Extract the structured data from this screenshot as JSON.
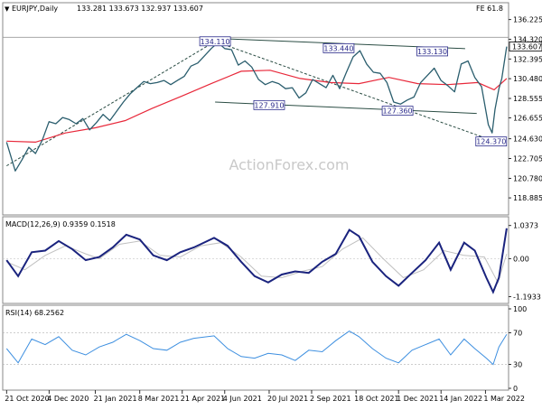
{
  "chart_data": [
    {
      "type": "candlestick",
      "symbol_title": "EURJPY,Daily",
      "ohlc_readout": "133.281 133.673 132.937 133.607",
      "fib_label": "FE 61.8",
      "last_price_label": "133.607",
      "last_price": 133.607,
      "ylim": [
        117.4,
        136.9
      ],
      "y_ticks": [
        118.885,
        120.78,
        122.705,
        124.63,
        126.655,
        128.555,
        130.48,
        132.395,
        134.32,
        136.225
      ],
      "y_tick_labels": [
        "118.885",
        "120.780",
        "122.705",
        "124.630",
        "126.655",
        "128.555",
        "130.480",
        "132.395",
        "134.320",
        "136.225"
      ],
      "fib_level": 134.5,
      "annotations": [
        {
          "text": "134.110",
          "value": 134.11,
          "date": "2021-05-25"
        },
        {
          "text": "133.440",
          "value": 133.44,
          "date": "2021-09-30"
        },
        {
          "text": "133.130",
          "value": 133.13,
          "date": "2022-01-05"
        },
        {
          "text": "127.910",
          "value": 127.91,
          "date": "2021-07-20"
        },
        {
          "text": "127.360",
          "value": 127.36,
          "date": "2021-11-30"
        },
        {
          "text": "124.370",
          "value": 124.37,
          "date": "2022-03-07"
        }
      ],
      "price_path": [
        [
          "2020-10-21",
          124.3
        ],
        [
          "2020-10-30",
          121.5
        ],
        [
          "2020-11-06",
          122.6
        ],
        [
          "2020-11-13",
          123.8
        ],
        [
          "2020-11-20",
          123.2
        ],
        [
          "2020-11-27",
          124.5
        ],
        [
          "2020-12-04",
          126.3
        ],
        [
          "2020-12-11",
          126.1
        ],
        [
          "2020-12-18",
          126.7
        ],
        [
          "2020-12-25",
          126.5
        ],
        [
          "2021-01-01",
          126.1
        ],
        [
          "2021-01-08",
          126.6
        ],
        [
          "2021-01-15",
          125.5
        ],
        [
          "2021-01-22",
          126.2
        ],
        [
          "2021-01-29",
          127.0
        ],
        [
          "2021-02-05",
          126.4
        ],
        [
          "2021-02-12",
          127.3
        ],
        [
          "2021-02-19",
          128.2
        ],
        [
          "2021-02-26",
          129.0
        ],
        [
          "2021-03-05",
          129.6
        ],
        [
          "2021-03-12",
          130.2
        ],
        [
          "2021-03-19",
          130.0
        ],
        [
          "2021-03-26",
          130.1
        ],
        [
          "2021-04-02",
          130.3
        ],
        [
          "2021-04-09",
          129.9
        ],
        [
          "2021-04-16",
          130.3
        ],
        [
          "2021-04-23",
          130.7
        ],
        [
          "2021-04-30",
          131.7
        ],
        [
          "2021-05-07",
          132.0
        ],
        [
          "2021-05-14",
          132.7
        ],
        [
          "2021-05-21",
          133.4
        ],
        [
          "2021-05-28",
          134.0
        ],
        [
          "2021-06-04",
          133.4
        ],
        [
          "2021-06-11",
          133.3
        ],
        [
          "2021-06-18",
          131.8
        ],
        [
          "2021-06-25",
          132.2
        ],
        [
          "2021-07-02",
          131.6
        ],
        [
          "2021-07-09",
          130.4
        ],
        [
          "2021-07-16",
          129.9
        ],
        [
          "2021-07-23",
          130.2
        ],
        [
          "2021-07-30",
          130.0
        ],
        [
          "2021-08-06",
          129.5
        ],
        [
          "2021-08-13",
          129.6
        ],
        [
          "2021-08-20",
          128.6
        ],
        [
          "2021-08-27",
          129.1
        ],
        [
          "2021-09-03",
          130.4
        ],
        [
          "2021-09-10",
          130.0
        ],
        [
          "2021-09-17",
          129.6
        ],
        [
          "2021-09-24",
          130.8
        ],
        [
          "2021-10-01",
          129.5
        ],
        [
          "2021-10-08",
          131.1
        ],
        [
          "2021-10-15",
          132.6
        ],
        [
          "2021-10-22",
          133.2
        ],
        [
          "2021-10-29",
          131.9
        ],
        [
          "2021-11-05",
          131.1
        ],
        [
          "2021-11-12",
          131.0
        ],
        [
          "2021-11-19",
          130.1
        ],
        [
          "2021-11-26",
          128.2
        ],
        [
          "2021-12-03",
          128.0
        ],
        [
          "2021-12-10",
          128.4
        ],
        [
          "2021-12-17",
          128.7
        ],
        [
          "2021-12-24",
          130.1
        ],
        [
          "2021-12-31",
          130.8
        ],
        [
          "2022-01-07",
          131.5
        ],
        [
          "2022-01-14",
          130.3
        ],
        [
          "2022-01-21",
          129.8
        ],
        [
          "2022-01-28",
          129.2
        ],
        [
          "2022-02-04",
          131.9
        ],
        [
          "2022-02-11",
          132.2
        ],
        [
          "2022-02-18",
          130.6
        ],
        [
          "2022-02-25",
          129.7
        ],
        [
          "2022-03-04",
          126.0
        ],
        [
          "2022-03-08",
          125.2
        ],
        [
          "2022-03-11",
          127.5
        ],
        [
          "2022-03-15",
          129.5
        ],
        [
          "2022-03-18",
          130.5
        ],
        [
          "2022-03-23",
          133.6
        ]
      ],
      "ma_path": [
        [
          "2020-10-21",
          124.4
        ],
        [
          "2020-11-20",
          124.3
        ],
        [
          "2020-12-21",
          125.2
        ],
        [
          "2021-01-21",
          125.7
        ],
        [
          "2021-02-21",
          126.4
        ],
        [
          "2021-03-21",
          127.6
        ],
        [
          "2021-04-21",
          128.8
        ],
        [
          "2021-05-21",
          130.0
        ],
        [
          "2021-06-21",
          131.2
        ],
        [
          "2021-07-21",
          131.3
        ],
        [
          "2021-08-21",
          130.5
        ],
        [
          "2021-09-21",
          130.1
        ],
        [
          "2021-10-21",
          130.0
        ],
        [
          "2021-11-21",
          130.6
        ],
        [
          "2021-12-21",
          130.0
        ],
        [
          "2022-01-21",
          129.9
        ],
        [
          "2022-02-21",
          130.1
        ],
        [
          "2022-03-10",
          129.4
        ],
        [
          "2022-03-23",
          130.5
        ]
      ],
      "trendlines": [
        {
          "name": "upper-channel",
          "from": [
            "2021-05-25",
            134.4
          ],
          "to": [
            "2022-02-08",
            133.4
          ]
        },
        {
          "name": "lower-channel",
          "from": [
            "2021-05-25",
            128.2
          ],
          "to": [
            "2022-02-20",
            127.1
          ]
        },
        {
          "name": "rising-support",
          "from": [
            "2020-10-21",
            122.0
          ],
          "to": [
            "2021-05-25",
            134.1
          ]
        },
        {
          "name": "falling-dashed",
          "from": [
            "2021-05-25",
            134.1
          ],
          "to": [
            "2022-03-07",
            124.5
          ]
        }
      ],
      "watermark": "ActionForex.com"
    },
    {
      "type": "line",
      "title": "MACD(12,26,9) 0.9359 0.1518",
      "ylim": [
        -1.35,
        1.2
      ],
      "y_ticks": [
        1.0373,
        0.0,
        -1.1933
      ],
      "y_tick_labels": [
        "1.0373",
        "0.00",
        "-1.1933"
      ],
      "series": [
        {
          "name": "MACD",
          "values": [
            [
              "2020-10-21",
              -0.05
            ],
            [
              "2020-11-02",
              -0.55
            ],
            [
              "2020-11-16",
              0.2
            ],
            [
              "2020-11-30",
              0.25
            ],
            [
              "2020-12-14",
              0.55
            ],
            [
              "2020-12-28",
              0.3
            ],
            [
              "2021-01-11",
              -0.05
            ],
            [
              "2021-01-25",
              0.05
            ],
            [
              "2021-02-08",
              0.35
            ],
            [
              "2021-02-22",
              0.75
            ],
            [
              "2021-03-08",
              0.6
            ],
            [
              "2021-03-22",
              0.1
            ],
            [
              "2021-04-05",
              -0.05
            ],
            [
              "2021-04-19",
              0.2
            ],
            [
              "2021-05-03",
              0.35
            ],
            [
              "2021-05-24",
              0.65
            ],
            [
              "2021-06-07",
              0.4
            ],
            [
              "2021-06-21",
              -0.1
            ],
            [
              "2021-07-05",
              -0.55
            ],
            [
              "2021-07-19",
              -0.75
            ],
            [
              "2021-08-02",
              -0.5
            ],
            [
              "2021-08-16",
              -0.4
            ],
            [
              "2021-08-30",
              -0.45
            ],
            [
              "2021-09-13",
              -0.1
            ],
            [
              "2021-09-27",
              0.15
            ],
            [
              "2021-10-11",
              0.9
            ],
            [
              "2021-10-21",
              0.7
            ],
            [
              "2021-11-04",
              -0.1
            ],
            [
              "2021-11-18",
              -0.55
            ],
            [
              "2021-12-01",
              -0.85
            ],
            [
              "2021-12-15",
              -0.45
            ],
            [
              "2021-12-29",
              -0.05
            ],
            [
              "2022-01-12",
              0.5
            ],
            [
              "2022-01-24",
              -0.35
            ],
            [
              "2022-02-07",
              0.5
            ],
            [
              "2022-02-18",
              0.25
            ],
            [
              "2022-03-02",
              -0.6
            ],
            [
              "2022-03-09",
              -1.05
            ],
            [
              "2022-03-15",
              -0.6
            ],
            [
              "2022-03-23",
              0.95
            ]
          ]
        },
        {
          "name": "Signal",
          "values": [
            [
              "2020-10-21",
              -0.1
            ],
            [
              "2020-11-09",
              -0.35
            ],
            [
              "2020-11-30",
              0.1
            ],
            [
              "2020-12-21",
              0.4
            ],
            [
              "2021-01-11",
              0.15
            ],
            [
              "2021-01-25",
              0.0
            ],
            [
              "2021-02-15",
              0.45
            ],
            [
              "2021-03-08",
              0.55
            ],
            [
              "2021-03-29",
              0.1
            ],
            [
              "2021-04-19",
              0.05
            ],
            [
              "2021-05-10",
              0.4
            ],
            [
              "2021-05-31",
              0.5
            ],
            [
              "2021-06-21",
              0.05
            ],
            [
              "2021-07-12",
              -0.55
            ],
            [
              "2021-08-02",
              -0.6
            ],
            [
              "2021-08-23",
              -0.4
            ],
            [
              "2021-09-13",
              -0.25
            ],
            [
              "2021-10-04",
              0.3
            ],
            [
              "2021-10-25",
              0.65
            ],
            [
              "2021-11-15",
              0.0
            ],
            [
              "2021-12-06",
              -0.6
            ],
            [
              "2021-12-27",
              -0.35
            ],
            [
              "2022-01-17",
              0.25
            ],
            [
              "2022-02-07",
              0.1
            ],
            [
              "2022-02-28",
              0.05
            ],
            [
              "2022-03-14",
              -0.75
            ],
            [
              "2022-03-23",
              0.15
            ]
          ]
        }
      ]
    },
    {
      "type": "line",
      "title": "RSI(14) 68.2562",
      "ylim": [
        0,
        100
      ],
      "y_ticks": [
        100,
        70,
        30,
        0
      ],
      "y_tick_labels": [
        "100",
        "70",
        "30",
        "0"
      ],
      "series": [
        {
          "name": "RSI",
          "values": [
            [
              "2020-10-21",
              50
            ],
            [
              "2020-11-02",
              32
            ],
            [
              "2020-11-16",
              62
            ],
            [
              "2020-11-30",
              55
            ],
            [
              "2020-12-14",
              65
            ],
            [
              "2020-12-28",
              48
            ],
            [
              "2021-01-11",
              42
            ],
            [
              "2021-01-25",
              52
            ],
            [
              "2021-02-08",
              58
            ],
            [
              "2021-02-22",
              68
            ],
            [
              "2021-03-08",
              60
            ],
            [
              "2021-03-22",
              50
            ],
            [
              "2021-04-05",
              48
            ],
            [
              "2021-04-19",
              58
            ],
            [
              "2021-05-03",
              63
            ],
            [
              "2021-05-24",
              66
            ],
            [
              "2021-06-07",
              50
            ],
            [
              "2021-06-21",
              40
            ],
            [
              "2021-07-05",
              38
            ],
            [
              "2021-07-19",
              44
            ],
            [
              "2021-08-02",
              42
            ],
            [
              "2021-08-16",
              35
            ],
            [
              "2021-08-30",
              48
            ],
            [
              "2021-09-13",
              46
            ],
            [
              "2021-09-27",
              60
            ],
            [
              "2021-10-11",
              72
            ],
            [
              "2021-10-21",
              65
            ],
            [
              "2021-11-04",
              50
            ],
            [
              "2021-11-18",
              38
            ],
            [
              "2021-12-01",
              32
            ],
            [
              "2021-12-15",
              48
            ],
            [
              "2021-12-29",
              55
            ],
            [
              "2022-01-12",
              62
            ],
            [
              "2022-01-24",
              42
            ],
            [
              "2022-02-07",
              62
            ],
            [
              "2022-02-18",
              50
            ],
            [
              "2022-03-02",
              38
            ],
            [
              "2022-03-09",
              30
            ],
            [
              "2022-03-15",
              52
            ],
            [
              "2022-03-23",
              68
            ]
          ]
        }
      ]
    }
  ],
  "x_axis": {
    "tick_labels": [
      "21 Oct 2020",
      "4 Dec 2020",
      "21 Jan 2021",
      "8 Mar 2021",
      "21 Apr 2021",
      "4 Jun 2021",
      "20 Jul 2021",
      "2 Sep 2021",
      "18 Oct 2021",
      "1 Dec 2021",
      "14 Jan 2022",
      "1 Mar 2022"
    ],
    "tick_dates": [
      "2020-10-21",
      "2020-12-04",
      "2021-01-21",
      "2021-03-08",
      "2021-04-21",
      "2021-06-04",
      "2021-07-20",
      "2021-09-02",
      "2021-10-18",
      "2021-12-01",
      "2022-01-14",
      "2022-03-01"
    ]
  },
  "colors": {
    "price": "#2b5e6e",
    "ma": "#e8283a",
    "macd": "#1a237e",
    "signal": "#c0c0c0",
    "rsi": "#3d8fe0",
    "trend": "#2b4d44",
    "last_price_bg": "#ffffff"
  }
}
